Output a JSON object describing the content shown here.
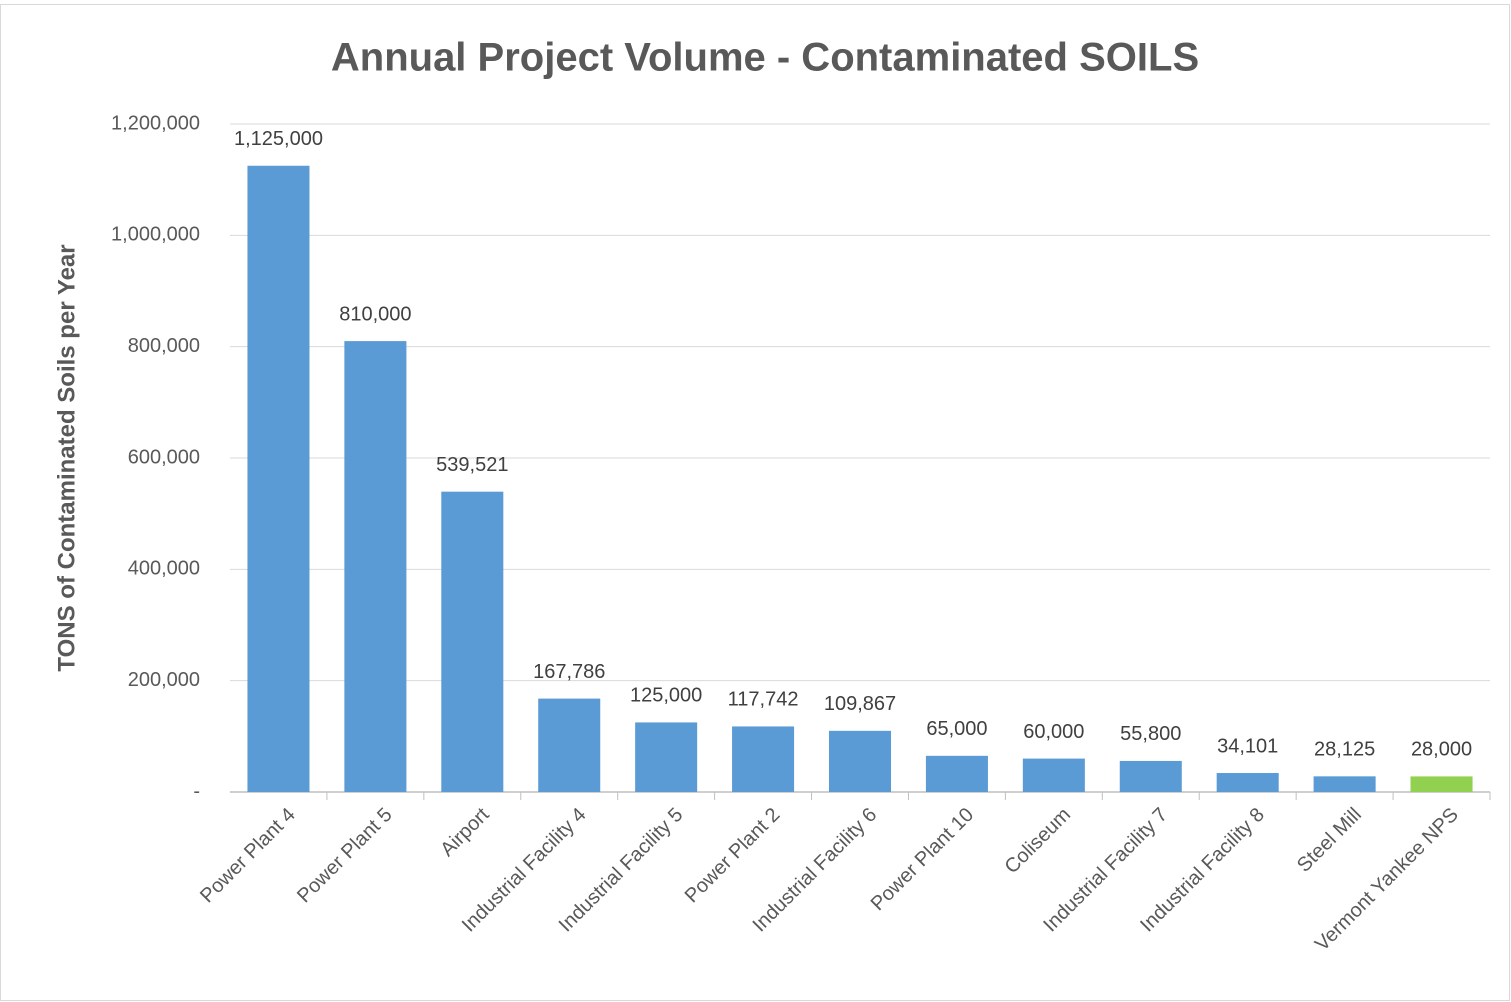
{
  "chart_data": {
    "type": "bar",
    "title": "Annual Project Volume - Contaminated SOILS",
    "y_label": "TONS of Contaminated Soils per Year",
    "categories": [
      "Power Plant 4",
      "Power Plant 5",
      "Airport",
      "Industrial Facility 4",
      "Industrial Facility 5",
      "Power Plant 2",
      "Industrial Facility 6",
      "Power Plant 10",
      "Coliseum",
      "Industrial Facility 7",
      "Industrial Facility 8",
      "Steel Mill",
      "Vermont Yankee NPS"
    ],
    "values": [
      1125000,
      810000,
      539521,
      167786,
      125000,
      117742,
      109867,
      65000,
      60000,
      55800,
      34101,
      28125,
      28000
    ],
    "value_labels": [
      "1,125,000",
      "810,000",
      "539,521",
      "167,786",
      "125,000",
      "117,742",
      "109,867",
      "65,000",
      "60,000",
      "55,800",
      "34,101",
      "28,125",
      "28,000"
    ],
    "colors": [
      "#5b9bd5",
      "#5b9bd5",
      "#5b9bd5",
      "#5b9bd5",
      "#5b9bd5",
      "#5b9bd5",
      "#5b9bd5",
      "#5b9bd5",
      "#5b9bd5",
      "#5b9bd5",
      "#5b9bd5",
      "#5b9bd5",
      "#92d050"
    ],
    "ylim": [
      0,
      1200000
    ],
    "yticks": [
      {
        "value": 0,
        "label": "-"
      },
      {
        "value": 200000,
        "label": "200,000"
      },
      {
        "value": 400000,
        "label": "400,000"
      },
      {
        "value": 600000,
        "label": "600,000"
      },
      {
        "value": 800000,
        "label": "800,000"
      },
      {
        "value": 1000000,
        "label": "1,000,000"
      },
      {
        "value": 1200000,
        "label": "1,200,000"
      }
    ],
    "grid": true
  }
}
